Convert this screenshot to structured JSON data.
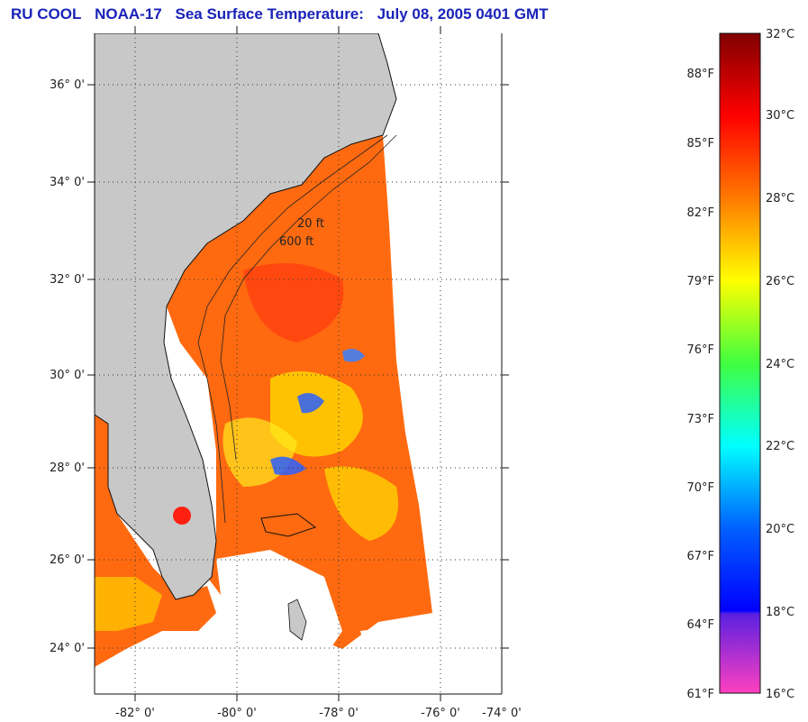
{
  "title": {
    "part1": "RU COOL",
    "part2": "NOAA-17",
    "part3": "Sea Surface Temperature:",
    "part4": "July 08, 2005 0401 GMT"
  },
  "map": {
    "lat_labels": [
      "36° 0'",
      "34° 0'",
      "32° 0'",
      "30° 0'",
      "28° 0'",
      "26° 0'",
      "24° 0'"
    ],
    "lon_labels": [
      "-82° 0'",
      "-80° 0'",
      "-78° 0'",
      "-76° 0'",
      "-74° 0'"
    ],
    "contour_labels": [
      "20 ft",
      "600 ft"
    ],
    "land_color": "#c8c8c8",
    "sst_main_color": "#ff6a10"
  },
  "colorbar": {
    "celsius": [
      "32°C",
      "30°C",
      "28°C",
      "26°C",
      "24°C",
      "22°C",
      "20°C",
      "18°C",
      "16°C"
    ],
    "fahrenheit": [
      "88°F",
      "85°F",
      "82°F",
      "79°F",
      "76°F",
      "73°F",
      "70°F",
      "67°F",
      "64°F",
      "61°F"
    ],
    "gradient": [
      "#800000",
      "#ff0000",
      "#ff7a00",
      "#ffff00",
      "#40ff40",
      "#00ffff",
      "#0060ff",
      "#0000ff",
      "#8020ff",
      "#ff40c0"
    ]
  }
}
